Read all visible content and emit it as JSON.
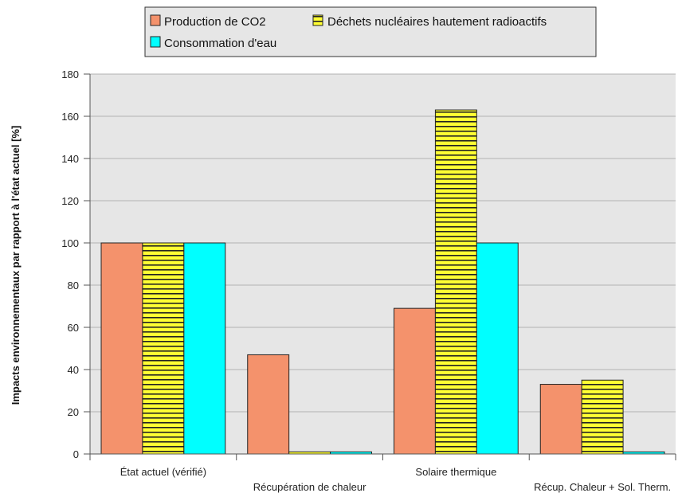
{
  "chart_data": {
    "type": "bar",
    "title": "",
    "xlabel": "",
    "ylabel": "Impacts environnementaux par rapport à l'état actuel [%]",
    "ylim": [
      0,
      180
    ],
    "yticks": [
      0,
      20,
      40,
      60,
      80,
      100,
      120,
      140,
      160,
      180
    ],
    "grid": true,
    "legend_position": "top",
    "categories": [
      "État actuel (vérifié)",
      "Récupération de chaleur",
      "Solaire thermique",
      "Récup. Chaleur + Sol. Therm."
    ],
    "series": [
      {
        "name": "Production de CO2",
        "color": "#f4926c",
        "pattern": "solid",
        "values": [
          100,
          47,
          69,
          33
        ]
      },
      {
        "name": "Déchets nucléaires hautement radioactifs",
        "color": "#ffff33",
        "pattern": "horizontal-stripes",
        "values": [
          100,
          1,
          163,
          35
        ]
      },
      {
        "name": "Consommation d'eau",
        "color": "#00ffff",
        "pattern": "solid",
        "values": [
          100,
          1,
          100,
          1
        ]
      }
    ]
  },
  "colors": {
    "plot_background": "#e6e6e6",
    "gridline": "#b3b3b3",
    "legend_background": "#e6e6e6"
  }
}
